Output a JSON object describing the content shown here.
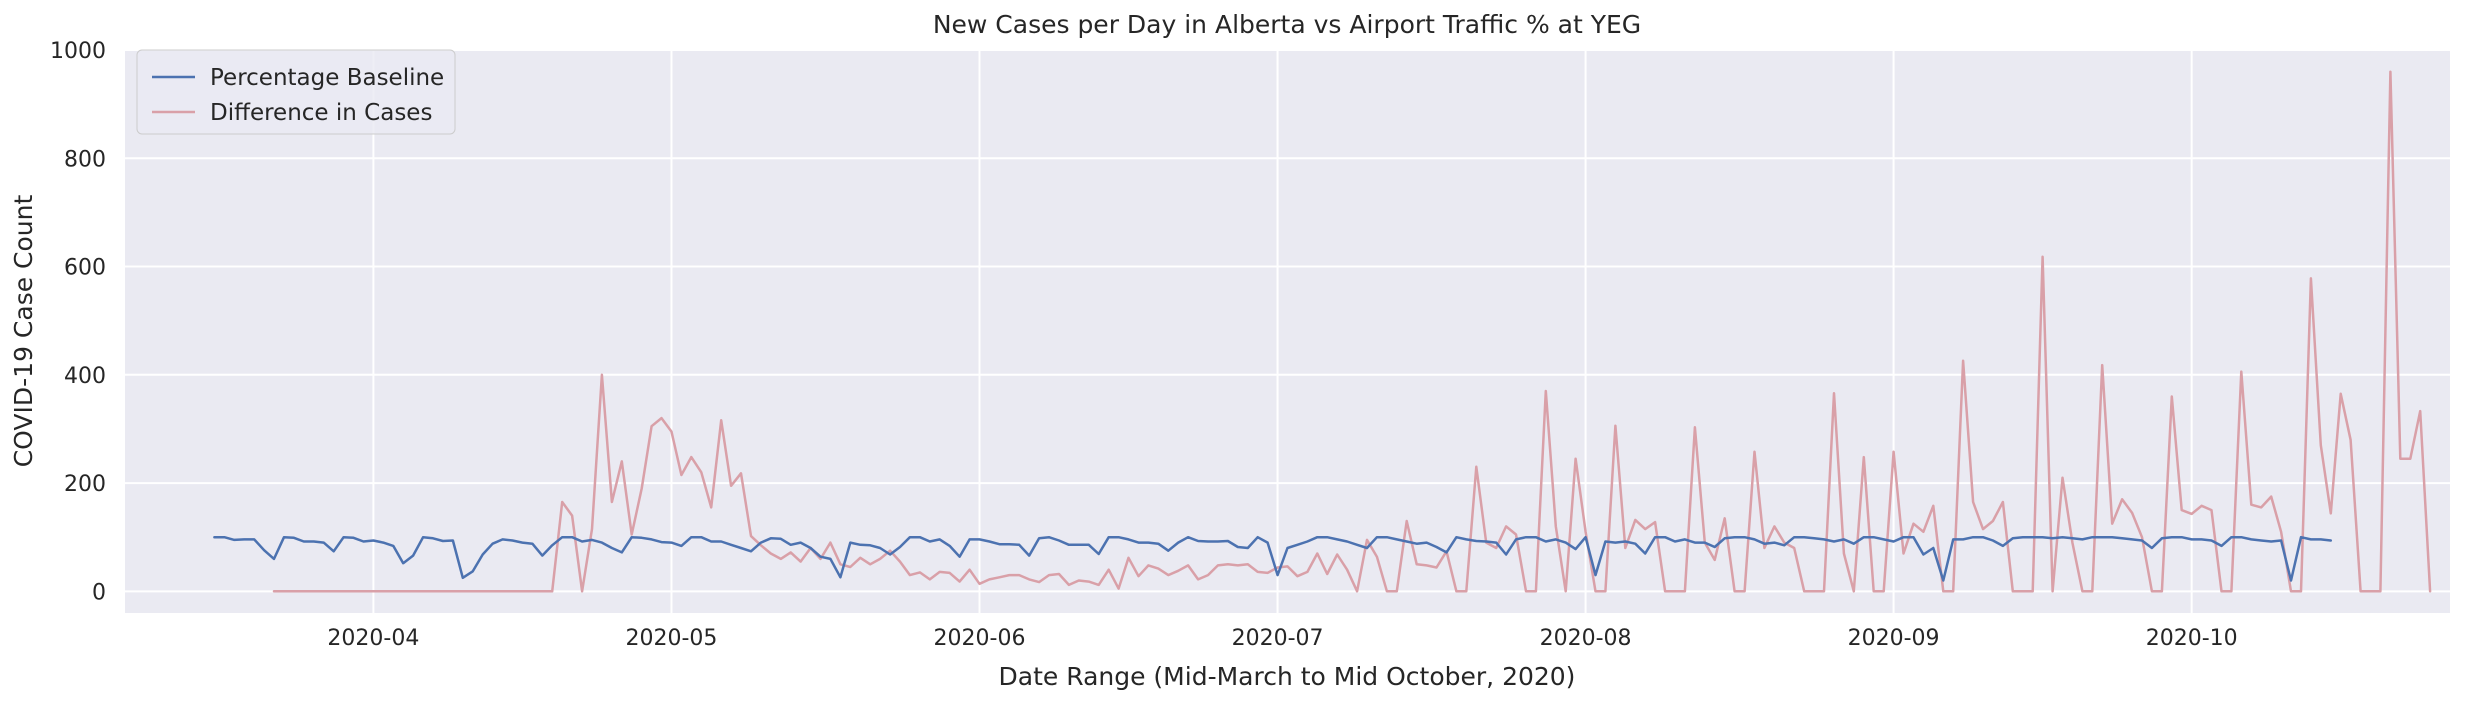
{
  "chart_data": {
    "type": "line",
    "title": "New Cases per Day in Alberta vs Airport Traffic % at YEG",
    "xlabel": "Date Range (Mid-March to Mid October, 2020)",
    "ylabel": "COVID-19 Case Count",
    "xlim": [
      "2020-03-07",
      "2020-10-27"
    ],
    "ylim": [
      -40,
      1000
    ],
    "x_ticks": [
      "2020-04-01",
      "2020-05-01",
      "2020-06-01",
      "2020-07-01",
      "2020-08-01",
      "2020-09-01",
      "2020-10-01"
    ],
    "x_tick_labels": [
      "2020-04",
      "2020-05",
      "2020-06",
      "2020-07",
      "2020-08",
      "2020-09",
      "2020-10"
    ],
    "y_ticks": [
      0,
      200,
      400,
      600,
      800,
      1000
    ],
    "y_tick_labels": [
      "0",
      "200",
      "400",
      "600",
      "800",
      "1000"
    ],
    "grid": true,
    "background": "#eaeaf2",
    "legend": "top-left",
    "series": [
      {
        "name": "Percentage Baseline",
        "color": "#4c72b0",
        "start": "2020-03-16",
        "values": [
          100,
          100,
          95,
          96,
          96,
          76,
          60,
          100,
          99,
          92,
          92,
          90,
          74,
          100,
          99,
          92,
          94,
          90,
          84,
          52,
          66,
          100,
          98,
          93,
          94,
          25,
          37,
          68,
          88,
          96,
          94,
          90,
          88,
          66,
          85,
          100,
          100,
          92,
          95,
          90,
          80,
          72,
          100,
          99,
          96,
          91,
          90,
          84,
          100,
          100,
          92,
          92,
          86,
          80,
          74,
          90,
          98,
          97,
          86,
          90,
          80,
          64,
          60,
          26,
          90,
          86,
          85,
          80,
          68,
          82,
          100,
          100,
          92,
          96,
          84,
          64,
          96,
          96,
          92,
          87,
          87,
          86,
          66,
          98,
          100,
          94,
          86,
          86,
          86,
          69,
          100,
          100,
          96,
          90,
          90,
          88,
          75,
          90,
          100,
          93,
          92,
          92,
          93,
          82,
          80,
          100,
          90,
          30,
          80,
          86,
          92,
          100,
          100,
          96,
          92,
          86,
          80,
          100,
          100,
          96,
          92,
          88,
          90,
          82,
          72,
          100,
          96,
          93,
          92,
          90,
          68,
          96,
          100,
          100,
          92,
          96,
          90,
          78,
          100,
          30,
          92,
          90,
          92,
          88,
          70,
          100,
          100,
          92,
          96,
          90,
          90,
          82,
          98,
          100,
          100,
          96,
          88,
          90,
          85,
          100,
          100,
          98,
          96,
          92,
          96,
          88,
          100,
          100,
          96,
          92,
          100,
          100,
          68,
          80,
          20,
          96,
          96,
          100,
          100,
          94,
          84,
          98,
          100,
          100,
          100,
          98,
          100,
          98,
          96,
          100,
          100,
          100,
          98,
          96,
          94,
          80,
          98,
          100,
          100,
          96,
          96,
          94,
          84,
          100,
          100,
          96,
          94,
          92,
          94,
          20,
          100,
          96,
          96,
          94
        ]
      },
      {
        "name": "Difference in Cases",
        "color": "#dd8452",
        "line_color": "#d9a0a8",
        "start": "2020-03-22",
        "values": [
          0,
          0,
          0,
          0,
          0,
          0,
          0,
          0,
          0,
          0,
          0,
          0,
          0,
          0,
          0,
          0,
          0,
          0,
          0,
          0,
          0,
          0,
          0,
          0,
          0,
          0,
          0,
          0,
          0,
          165,
          140,
          0,
          115,
          400,
          165,
          240,
          105,
          190,
          305,
          320,
          295,
          215,
          248,
          220,
          155,
          316,
          195,
          218,
          102,
          85,
          70,
          60,
          72,
          55,
          80,
          60,
          90,
          50,
          45,
          62,
          50,
          60,
          75,
          55,
          30,
          35,
          22,
          36,
          34,
          18,
          40,
          14,
          22,
          26,
          30,
          30,
          22,
          17,
          30,
          32,
          12,
          20,
          18,
          12,
          40,
          5,
          62,
          28,
          48,
          42,
          30,
          38,
          48,
          22,
          30,
          48,
          50,
          48,
          50,
          36,
          34,
          44,
          46,
          28,
          36,
          70,
          32,
          68,
          40,
          0,
          95,
          64,
          0,
          0,
          130,
          50,
          48,
          44,
          74,
          0,
          0,
          230,
          90,
          80,
          120,
          105,
          0,
          0,
          370,
          120,
          0,
          245,
          110,
          0,
          0,
          306,
          80,
          132,
          115,
          128,
          0,
          0,
          0,
          303,
          90,
          58,
          135,
          0,
          0,
          258,
          80,
          120,
          90,
          80,
          0,
          0,
          0,
          366,
          70,
          0,
          248,
          0,
          0,
          258,
          70,
          125,
          110,
          158,
          0,
          0,
          426,
          165,
          115,
          130,
          165,
          0,
          0,
          0,
          618,
          0,
          210,
          90,
          0,
          0,
          418,
          125,
          170,
          145,
          100,
          0,
          0,
          360,
          150,
          143,
          158,
          150,
          0,
          0,
          406,
          160,
          155,
          175,
          110,
          0,
          0,
          578,
          270,
          144,
          365,
          280,
          0,
          0,
          0,
          960,
          245,
          245,
          333,
          0
        ]
      }
    ]
  }
}
